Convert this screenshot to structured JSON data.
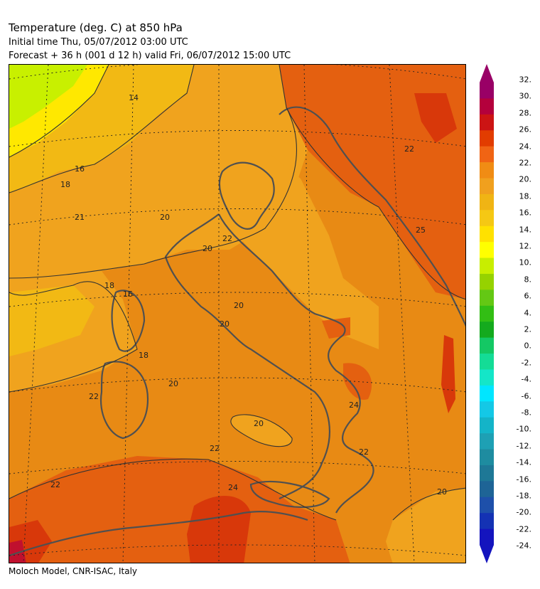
{
  "header": {
    "title": "Temperature (deg. C) at 850 hPa",
    "initial_time": "Initial time  Thu, 05/07/2012  03:00 UTC",
    "forecast": "Forecast  +  36 h  (001 d 12 h)  valid Fri, 06/07/2012 15:00 UTC"
  },
  "footer": {
    "credit": "Moloch Model, CNR-ISAC, Italy"
  },
  "map": {
    "region": "Italy and surrounding seas",
    "contour_labels": [
      "14",
      "16",
      "18",
      "21",
      "20",
      "22",
      "16",
      "18",
      "18",
      "20",
      "22",
      "20",
      "20",
      "22",
      "24",
      "20",
      "20",
      "22",
      "24",
      "25",
      "22",
      "20",
      "22"
    ]
  },
  "colorbar": {
    "labels": [
      "32.",
      "30.",
      "28.",
      "26.",
      "24.",
      "22.",
      "20.",
      "18.",
      "16.",
      "14.",
      "12.",
      "10.",
      "8.",
      "6.",
      "4.",
      "2.",
      "0.",
      "-2.",
      "-4.",
      "-6.",
      "-8.",
      "-10.",
      "-12.",
      "-14.",
      "-16.",
      "-18.",
      "-20.",
      "-22.",
      "-24."
    ],
    "colors": [
      "#990066",
      "#b4003c",
      "#cc1414",
      "#e23c00",
      "#f06414",
      "#f08c14",
      "#f0a01e",
      "#f0b414",
      "#f5c814",
      "#ffe100",
      "#ffff00",
      "#c8ee00",
      "#96d200",
      "#64c814",
      "#32be14",
      "#14aa1e",
      "#14c864",
      "#14dc96",
      "#14e6c8",
      "#00e6ff",
      "#14c8e6",
      "#14b4c8",
      "#1ea0b4",
      "#1e8ca0",
      "#1e7896",
      "#1e6496",
      "#1e50aa",
      "#1432b4",
      "#1414be"
    ]
  }
}
